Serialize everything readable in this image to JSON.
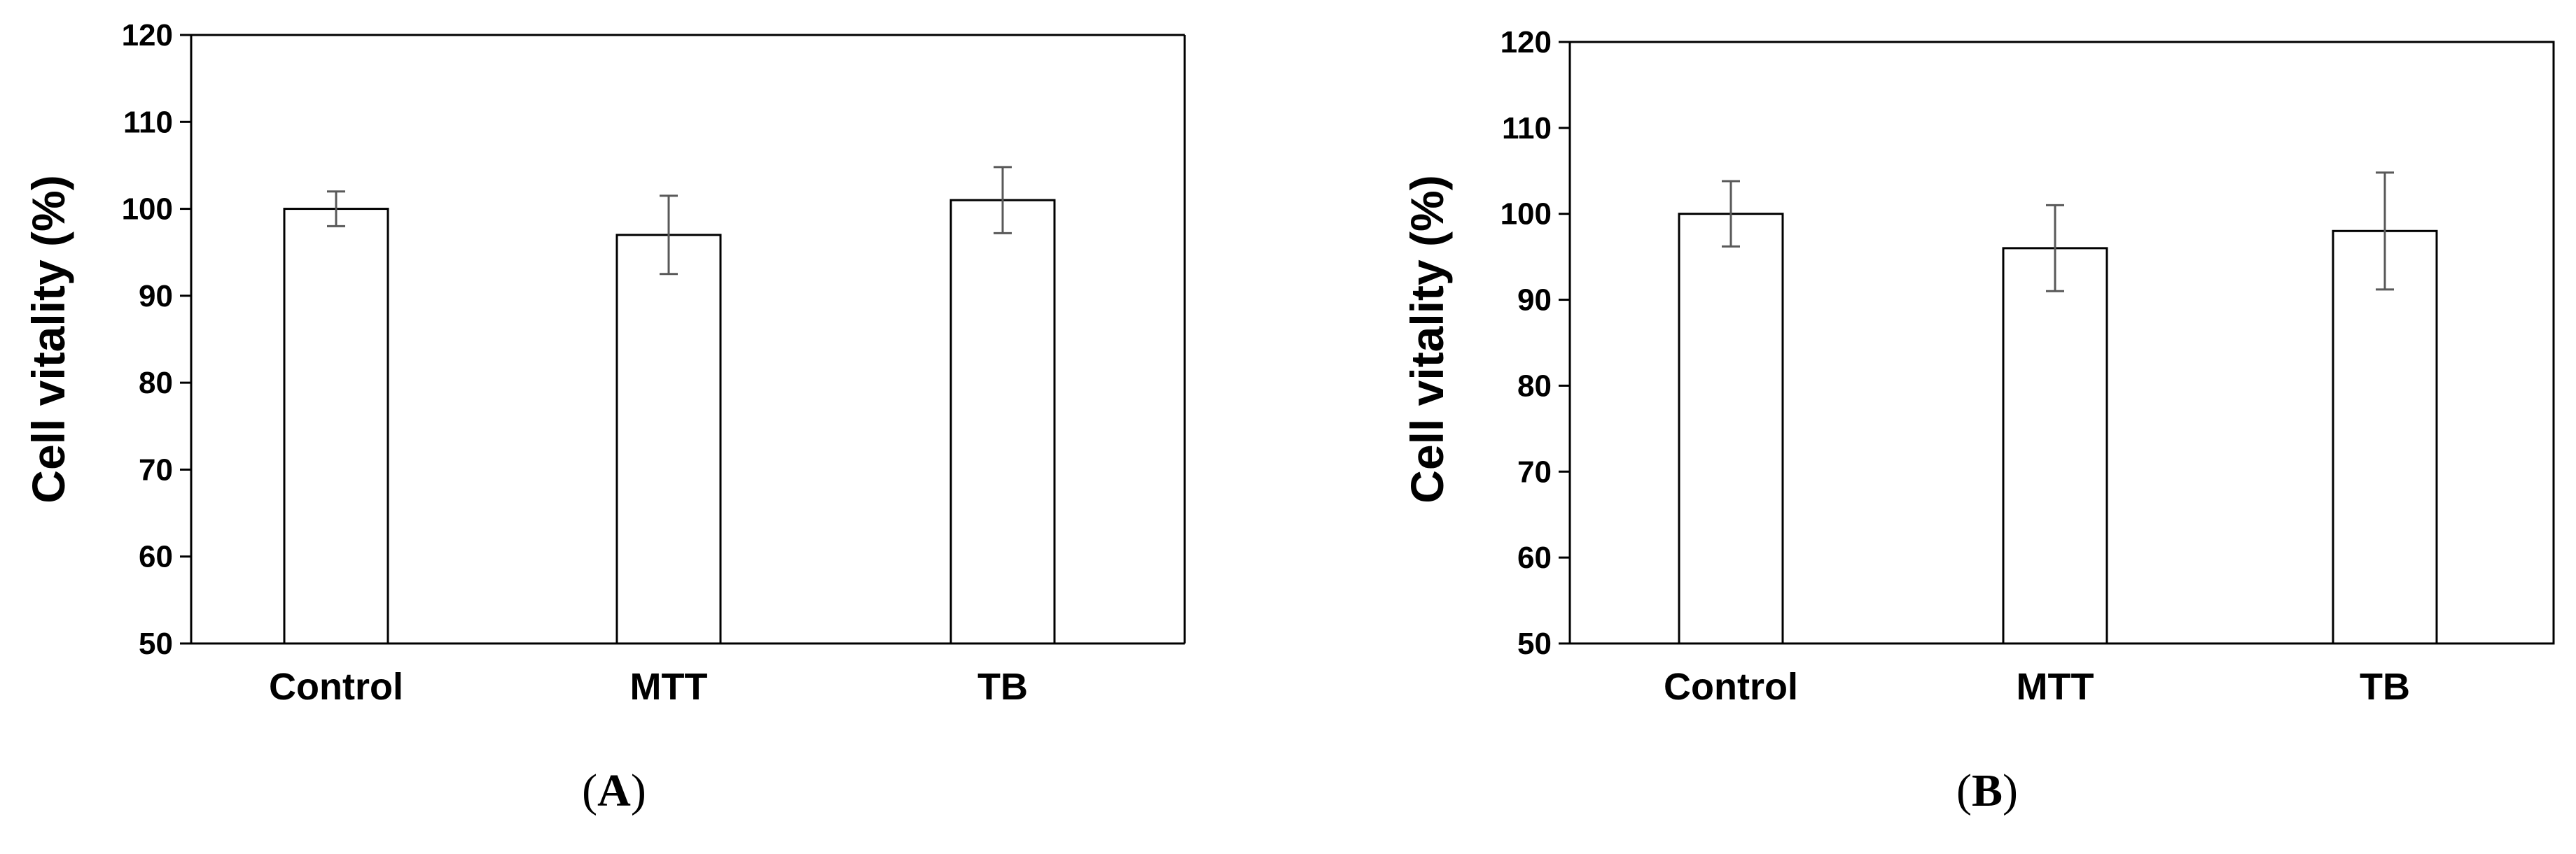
{
  "chart_data": [
    {
      "type": "bar",
      "panel_label": "A",
      "ylabel": "Cell vitality (%)",
      "xlabel": "",
      "ylim": [
        50,
        120
      ],
      "yticks": [
        50,
        60,
        70,
        80,
        90,
        100,
        110,
        120
      ],
      "grid": false,
      "categories": [
        "Control",
        "MTT",
        "TB"
      ],
      "values": [
        100,
        97,
        101
      ],
      "errors": [
        2,
        4.5,
        3.8
      ],
      "bar_color": "#ffffff",
      "bar_edge_color": "#000000",
      "error_color": "#595959"
    },
    {
      "type": "bar",
      "panel_label": "B",
      "ylabel": "Cell vitality (%)",
      "xlabel": "",
      "ylim": [
        50,
        120
      ],
      "yticks": [
        50,
        60,
        70,
        80,
        90,
        100,
        110,
        120
      ],
      "grid": false,
      "categories": [
        "Control",
        "MTT",
        "TB"
      ],
      "values": [
        100,
        96,
        98
      ],
      "errors": [
        3.8,
        5,
        6.8
      ],
      "bar_color": "#ffffff",
      "bar_edge_color": "#000000",
      "error_color": "#595959"
    }
  ]
}
